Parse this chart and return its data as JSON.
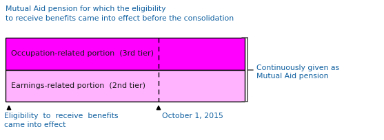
{
  "title_line1": "Mutual Aid pension for which the eligibility",
  "title_line2": "to receive benefits came into effect before the consolidation",
  "title_color": "#1060A0",
  "title_fontsize": 7.8,
  "top_box_color": "#FF00FF",
  "bottom_box_color": "#FFB3FF",
  "top_label": "Occupation-related portion  (3rd tier)",
  "bottom_label": "Earnings-related portion  (2nd tier)",
  "label_color": "#1A1A1A",
  "label_fontsize": 8.0,
  "brace_label_line1": "Continuously given as",
  "brace_label_line2": "Mutual Aid pension",
  "brace_label_color": "#1060A0",
  "brace_label_fontsize": 7.8,
  "arrow_label1_line1": "Eligibility  to  receive  benefits",
  "arrow_label1_line2": "came into effect",
  "arrow_label2": "October 1, 2015",
  "anno_fontsize": 7.8,
  "anno_color": "#1060A0",
  "brace_color": "#555555"
}
